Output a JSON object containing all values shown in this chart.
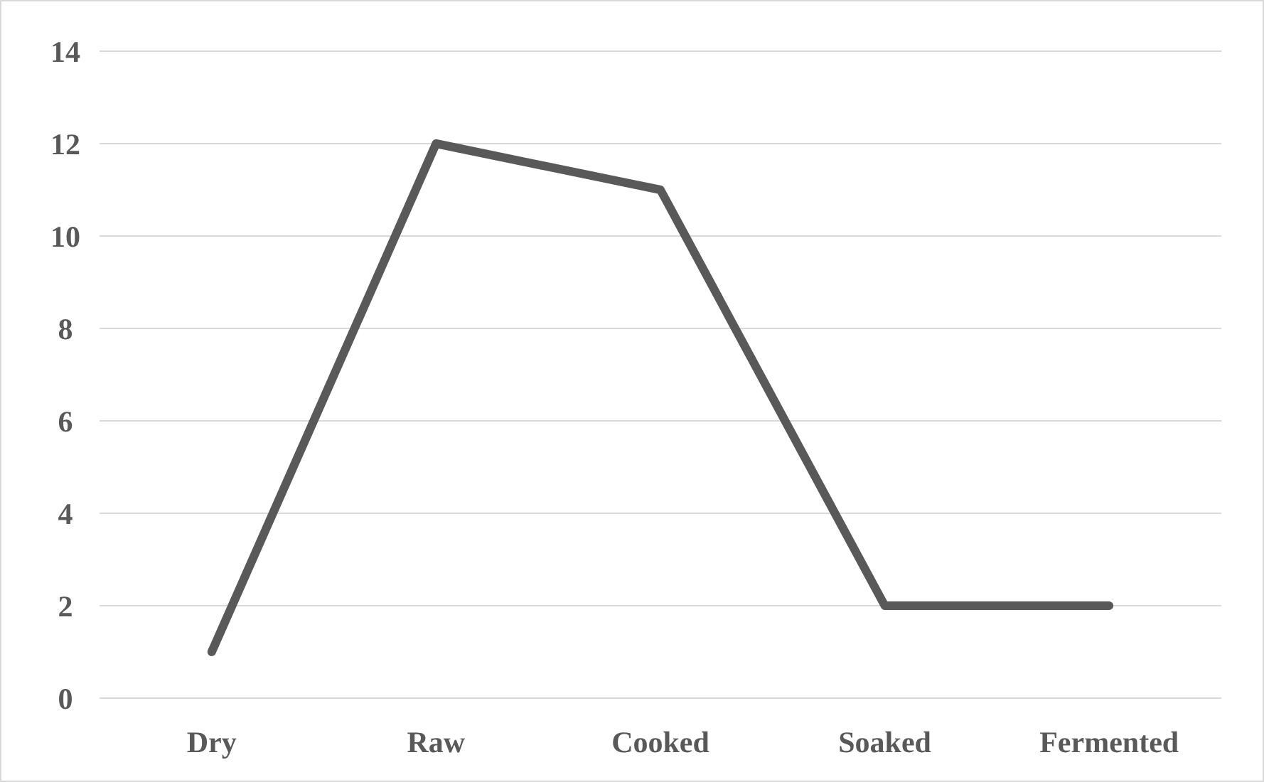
{
  "chart_data": {
    "type": "line",
    "categories": [
      "Dry",
      "Raw",
      "Cooked",
      "Soaked",
      "Fermented"
    ],
    "series": [
      {
        "color": "#595959",
        "values": [
          1,
          12,
          11,
          2,
          2
        ]
      }
    ],
    "ylim": [
      0,
      14
    ],
    "yticks": [
      0,
      2,
      4,
      6,
      8,
      10,
      12,
      14
    ],
    "grid": "y",
    "marker": "none",
    "line_style": "solid"
  }
}
